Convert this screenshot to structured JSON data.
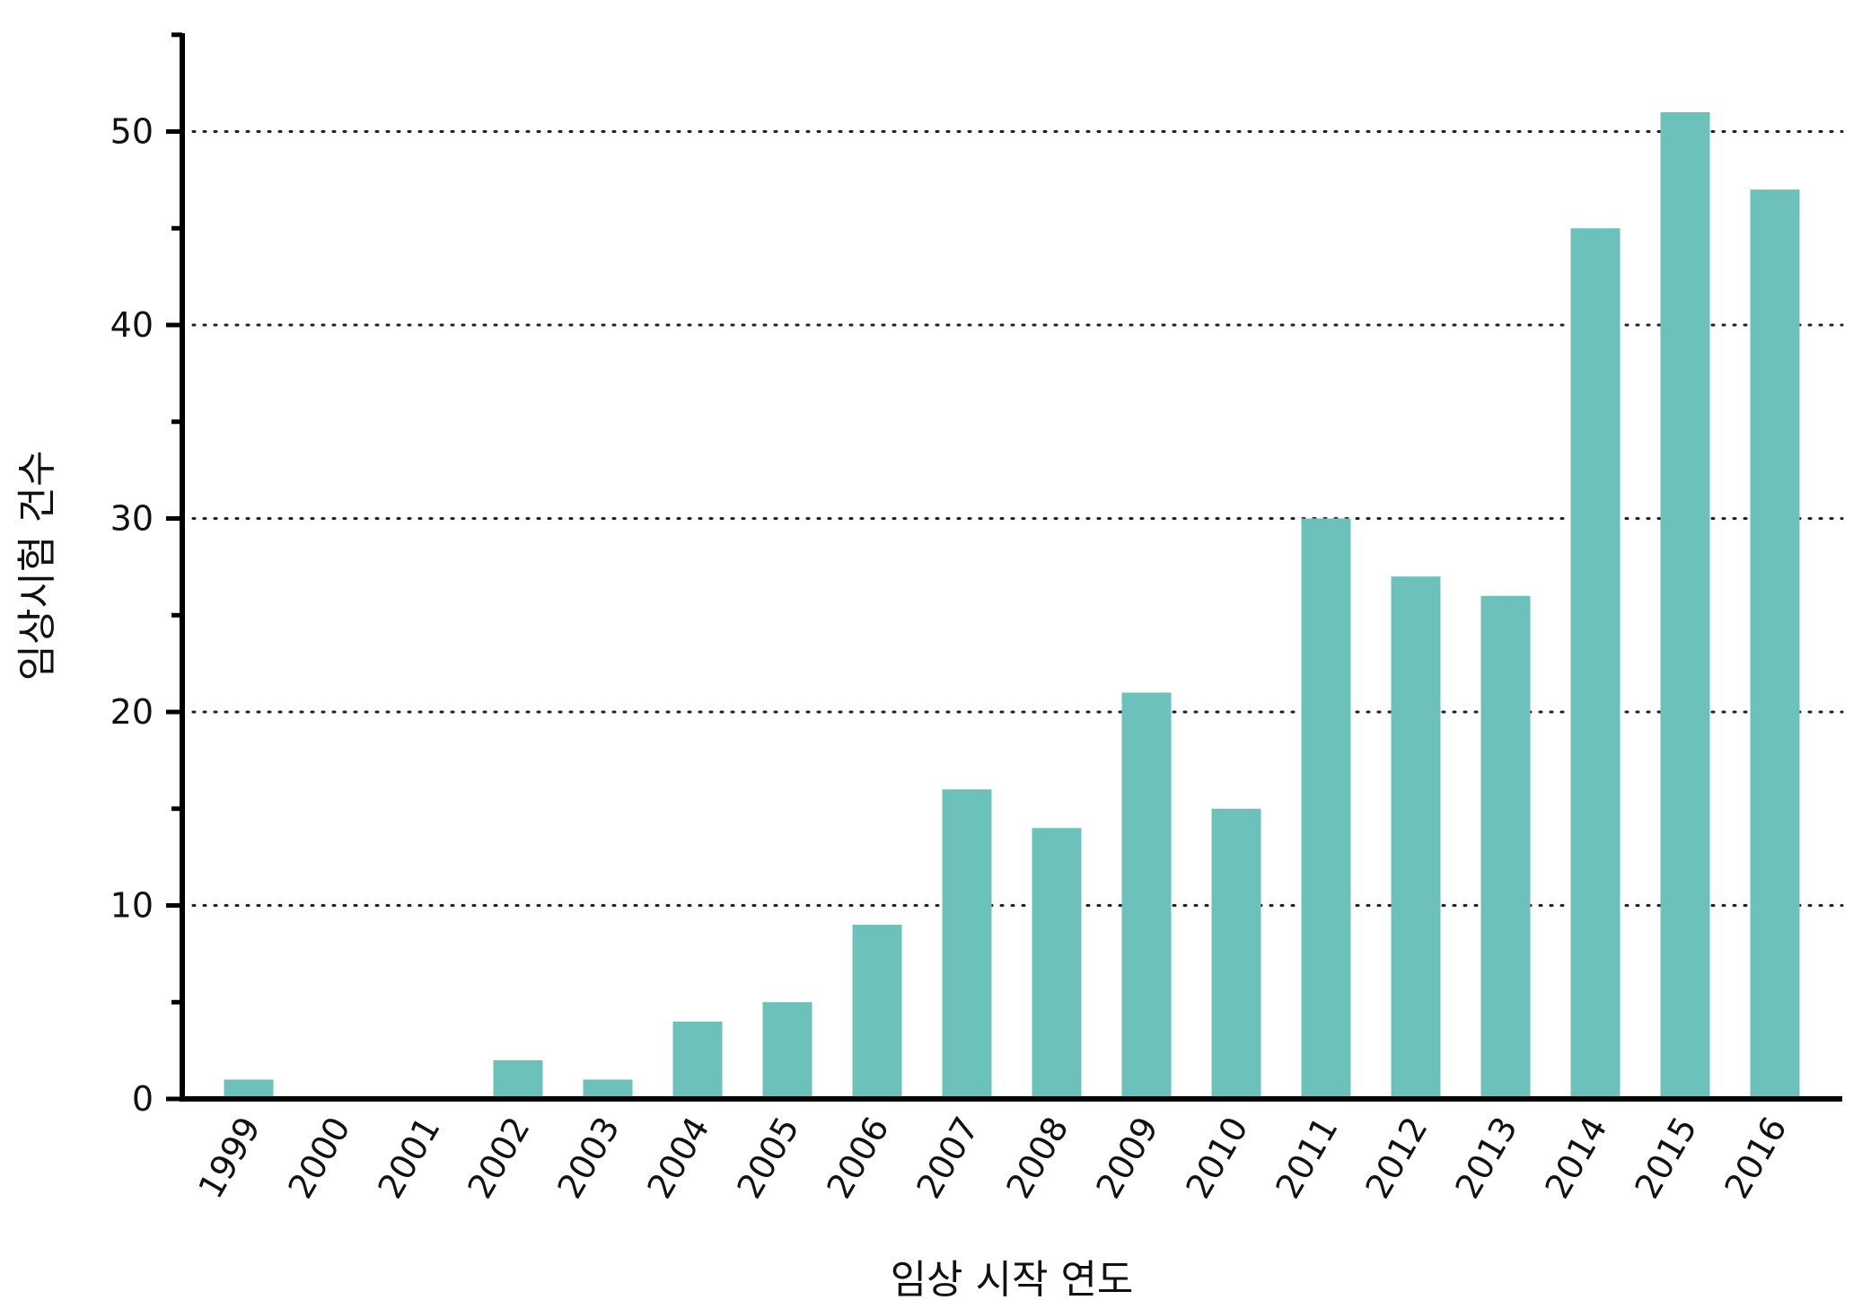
{
  "chart_data": {
    "type": "bar",
    "title": "",
    "xlabel": "임상 시작 연도",
    "ylabel": "임상시험 건수",
    "categories": [
      "1999",
      "2000",
      "2001",
      "2002",
      "2003",
      "2004",
      "2005",
      "2006",
      "2007",
      "2008",
      "2009",
      "2010",
      "2011",
      "2012",
      "2013",
      "2014",
      "2015",
      "2016"
    ],
    "values": [
      1,
      0,
      0,
      2,
      1,
      4,
      5,
      9,
      16,
      14,
      21,
      15,
      30,
      27,
      26,
      45,
      51,
      47
    ],
    "ylim": [
      0,
      55
    ],
    "yticks": [
      0,
      10,
      20,
      30,
      40,
      50
    ],
    "grid": "horizontal dotted",
    "legend": "none",
    "bar_color": "#6cc1bb",
    "axis_color": "#000000"
  }
}
